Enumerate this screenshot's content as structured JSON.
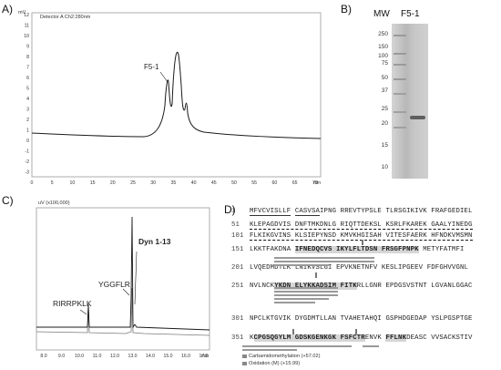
{
  "panels": {
    "a": "A)",
    "b": "B)",
    "c": "C)",
    "d": "D)"
  },
  "panel_a": {
    "unit": "mV",
    "detector": "Detector A Ch2:280nm",
    "peak_label": "F5-1",
    "xunit": "min",
    "yticks": [
      "12",
      "11",
      "10",
      "9",
      "8",
      "7",
      "6",
      "5",
      "4",
      "3",
      "2",
      "1",
      "0",
      "-1",
      "-2",
      "-3"
    ],
    "xticks": [
      "0",
      "5",
      "10",
      "15",
      "20",
      "25",
      "30",
      "35",
      "40",
      "45",
      "50",
      "55",
      "60",
      "65",
      "70"
    ]
  },
  "panel_b": {
    "lane_mw": "MW",
    "lane_f": "F5-1",
    "markers": [
      "250",
      "150",
      "100",
      "75",
      "50",
      "37",
      "25",
      "20",
      "15",
      "10"
    ]
  },
  "panel_c": {
    "unit": "uV (x100,000)",
    "labels": {
      "p1": "RIRRPKLK",
      "p2": "YGGFLR",
      "p3": "Dyn 1-13"
    },
    "xunit": "min",
    "xticks": [
      "8.0",
      "9.0",
      "10.0",
      "11.0",
      "12.0",
      "13.0",
      "14.0",
      "15.0",
      "16.0",
      "17.0"
    ]
  },
  "panel_d": {
    "lines": [
      {
        "n": "1",
        "segs": [
          {
            "t": "MFVCVISLLF",
            "c": "ul1"
          },
          {
            "t": " "
          },
          {
            "t": "CASVSA",
            "c": "ul1"
          },
          {
            "t": "IPNG RREVTYPSLE TLRSGIKIVK FRAFGEDIEL"
          }
        ]
      },
      {
        "n": "51",
        "segs": [
          {
            "t": "KLEPAGDVIS DNFTMKDNLG RIQTTDEKSL KSRLFKAREK GAALYINEDG",
            "c": "uld"
          }
        ]
      },
      {
        "n": "101",
        "segs": [
          {
            "t": "FLKIKGVINS KLSIEPYNSD KMVKHGISAH VITESFAERK HFNDKVMSMN",
            "c": "uld"
          }
        ]
      },
      {
        "n": "151",
        "segs": [
          {
            "t": "LKKTFAKDNA "
          },
          {
            "t": "IFNEDQCVS IKYLFLTDSN FRSGFPNPK",
            "c": "hl"
          },
          {
            "t": " METYFATMFI"
          }
        ]
      },
      {
        "n": "201",
        "segs": [
          {
            "t": "LVQEDMDTLK LNIKVSLGI EPVKNETNFV KESLIPGEEV FDFGHVVGNL"
          }
        ]
      },
      {
        "n": "251",
        "segs": [
          {
            "t": "NVLNCK"
          },
          {
            "t": "YKDN ELYKKADSIM FITK",
            "c": "hl"
          },
          {
            "t": "RLLGNR EPDGSVSTNT LGVANLGGAC"
          }
        ]
      },
      {
        "n": "301",
        "segs": [
          {
            "t": "NPCLKTGVIK DYGDMTLLAN TVAHETAHQI GSPHDGEDAP YSLPGSPTGE"
          }
        ]
      },
      {
        "n": "351",
        "segs": [
          {
            "t": "K"
          },
          {
            "t": "CPGSQGYLM GDSKGENKGK FSFCTR",
            "c": "hl"
          },
          {
            "t": "ENVK "
          },
          {
            "t": "FFLNK",
            "c": "hl"
          },
          {
            "t": "DEASC VVSACKSTIV"
          }
        ]
      }
    ],
    "mod_small": [
      "C",
      "M",
      "C",
      "C"
    ],
    "legend": [
      "Carbamidomethylation (+57.02)",
      "Oxidation (M) (+15.99)"
    ]
  }
}
